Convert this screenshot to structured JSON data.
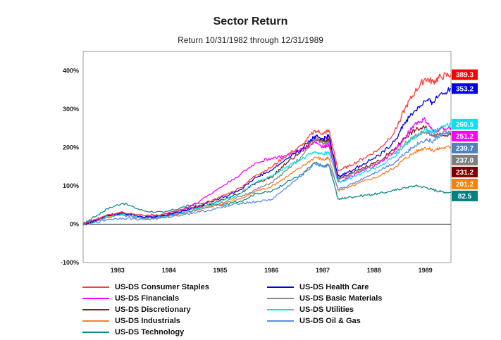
{
  "chart_data": {
    "type": "line",
    "title": "Sector Return",
    "subtitle": "Return 10/31/1982 through 12/31/1989",
    "xlabel": "",
    "ylabel": "",
    "x_range": [
      1982.83,
      1990.0
    ],
    "x_ticks": [
      "1983",
      "1984",
      "1985",
      "1986",
      "1987",
      "1988",
      "1989"
    ],
    "ylim": [
      -100,
      450
    ],
    "y_ticks": [
      -100,
      0,
      100,
      200,
      300,
      400
    ],
    "y_tick_labels": [
      "-100%",
      "0%",
      "100%",
      "200%",
      "300%",
      "400%"
    ],
    "grid": true,
    "legend_position": "bottom",
    "series": [
      {
        "name": "US-DS Consumer Staples",
        "color": "#ff3b3b",
        "end_label": "389.3",
        "label_bg": "#ff0000",
        "label_fg": "#ffffff",
        "points": [
          [
            1982.83,
            0
          ],
          [
            1983.0,
            8
          ],
          [
            1983.3,
            25
          ],
          [
            1983.6,
            32
          ],
          [
            1984.0,
            22
          ],
          [
            1984.4,
            26
          ],
          [
            1984.8,
            38
          ],
          [
            1985.1,
            50
          ],
          [
            1985.5,
            70
          ],
          [
            1985.9,
            95
          ],
          [
            1986.2,
            128
          ],
          [
            1986.5,
            148
          ],
          [
            1986.8,
            180
          ],
          [
            1987.1,
            205
          ],
          [
            1987.35,
            244
          ],
          [
            1987.52,
            235
          ],
          [
            1987.62,
            245
          ],
          [
            1987.8,
            140
          ],
          [
            1988.0,
            150
          ],
          [
            1988.3,
            172
          ],
          [
            1988.6,
            195
          ],
          [
            1988.9,
            240
          ],
          [
            1989.1,
            300
          ],
          [
            1989.3,
            345
          ],
          [
            1989.5,
            380
          ],
          [
            1989.65,
            370
          ],
          [
            1989.8,
            384
          ],
          [
            1990.0,
            389.3
          ]
        ]
      },
      {
        "name": "US-DS Health Care",
        "color": "#0000ee",
        "end_label": "353.2",
        "label_bg": "#0000ee",
        "label_fg": "#ffffff",
        "points": [
          [
            1982.83,
            0
          ],
          [
            1983.0,
            6
          ],
          [
            1983.3,
            24
          ],
          [
            1983.6,
            30
          ],
          [
            1984.0,
            18
          ],
          [
            1984.4,
            22
          ],
          [
            1984.8,
            36
          ],
          [
            1985.1,
            48
          ],
          [
            1985.5,
            68
          ],
          [
            1985.9,
            90
          ],
          [
            1986.2,
            122
          ],
          [
            1986.5,
            140
          ],
          [
            1986.8,
            170
          ],
          [
            1987.1,
            198
          ],
          [
            1987.35,
            230
          ],
          [
            1987.52,
            222
          ],
          [
            1987.62,
            230
          ],
          [
            1987.8,
            125
          ],
          [
            1988.0,
            135
          ],
          [
            1988.3,
            158
          ],
          [
            1988.6,
            178
          ],
          [
            1988.9,
            215
          ],
          [
            1989.1,
            265
          ],
          [
            1989.3,
            295
          ],
          [
            1989.5,
            320
          ],
          [
            1989.65,
            318
          ],
          [
            1989.8,
            340
          ],
          [
            1990.0,
            353.2
          ]
        ]
      },
      {
        "name": "US-DS Utilities",
        "color": "#00e5ee",
        "end_label": "260.5",
        "label_bg": "#00e5ee",
        "label_fg": "#ffffff",
        "points": [
          [
            1982.83,
            0
          ],
          [
            1983.0,
            5
          ],
          [
            1983.3,
            20
          ],
          [
            1983.6,
            26
          ],
          [
            1984.0,
            16
          ],
          [
            1984.4,
            20
          ],
          [
            1984.8,
            32
          ],
          [
            1985.1,
            42
          ],
          [
            1985.5,
            60
          ],
          [
            1985.9,
            80
          ],
          [
            1986.2,
            110
          ],
          [
            1986.5,
            125
          ],
          [
            1986.8,
            150
          ],
          [
            1987.1,
            170
          ],
          [
            1987.35,
            190
          ],
          [
            1987.52,
            182
          ],
          [
            1987.62,
            188
          ],
          [
            1987.8,
            110
          ],
          [
            1988.0,
            118
          ],
          [
            1988.3,
            135
          ],
          [
            1988.6,
            150
          ],
          [
            1988.9,
            175
          ],
          [
            1989.1,
            205
          ],
          [
            1989.3,
            228
          ],
          [
            1989.5,
            245
          ],
          [
            1989.65,
            238
          ],
          [
            1989.8,
            252
          ],
          [
            1990.0,
            260.5
          ]
        ]
      },
      {
        "name": "US-DS Financials",
        "color": "#ff00ff",
        "end_label": "251.2",
        "label_bg": "#ff00ff",
        "label_fg": "#ffffff",
        "points": [
          [
            1982.83,
            0
          ],
          [
            1983.0,
            6
          ],
          [
            1983.3,
            22
          ],
          [
            1983.6,
            28
          ],
          [
            1984.0,
            18
          ],
          [
            1984.4,
            24
          ],
          [
            1984.8,
            40
          ],
          [
            1985.1,
            60
          ],
          [
            1985.5,
            95
          ],
          [
            1985.9,
            130
          ],
          [
            1986.2,
            160
          ],
          [
            1986.5,
            172
          ],
          [
            1986.8,
            178
          ],
          [
            1987.1,
            195
          ],
          [
            1987.35,
            215
          ],
          [
            1987.52,
            200
          ],
          [
            1987.62,
            208
          ],
          [
            1987.8,
            110
          ],
          [
            1988.0,
            120
          ],
          [
            1988.3,
            140
          ],
          [
            1988.6,
            158
          ],
          [
            1988.9,
            190
          ],
          [
            1989.1,
            225
          ],
          [
            1989.3,
            262
          ],
          [
            1989.5,
            272
          ],
          [
            1989.65,
            240
          ],
          [
            1989.8,
            248
          ],
          [
            1990.0,
            251.2
          ]
        ]
      },
      {
        "name": "US-DS Oil & Gas",
        "color": "#5a8dee",
        "end_label": "239.7",
        "label_bg": "#4f81bd",
        "label_fg": "#ffffff",
        "points": [
          [
            1982.83,
            0
          ],
          [
            1983.0,
            2
          ],
          [
            1983.3,
            12
          ],
          [
            1983.6,
            16
          ],
          [
            1984.0,
            12
          ],
          [
            1984.4,
            16
          ],
          [
            1984.8,
            26
          ],
          [
            1985.1,
            32
          ],
          [
            1985.5,
            42
          ],
          [
            1985.9,
            55
          ],
          [
            1986.2,
            58
          ],
          [
            1986.5,
            64
          ],
          [
            1986.8,
            96
          ],
          [
            1987.1,
            128
          ],
          [
            1987.35,
            158
          ],
          [
            1987.52,
            150
          ],
          [
            1987.62,
            155
          ],
          [
            1987.8,
            90
          ],
          [
            1988.0,
            100
          ],
          [
            1988.3,
            120
          ],
          [
            1988.6,
            140
          ],
          [
            1988.9,
            160
          ],
          [
            1989.1,
            185
          ],
          [
            1989.3,
            205
          ],
          [
            1989.5,
            220
          ],
          [
            1989.65,
            215
          ],
          [
            1989.8,
            232
          ],
          [
            1990.0,
            239.7
          ]
        ]
      },
      {
        "name": "US-DS Basic Materials",
        "color": "#888888",
        "end_label": "237.0",
        "label_bg": "#7f7f7f",
        "label_fg": "#ffffff",
        "points": [
          [
            1982.83,
            0
          ],
          [
            1983.0,
            4
          ],
          [
            1983.3,
            18
          ],
          [
            1983.6,
            24
          ],
          [
            1984.0,
            15
          ],
          [
            1984.4,
            20
          ],
          [
            1984.8,
            30
          ],
          [
            1985.1,
            40
          ],
          [
            1985.5,
            55
          ],
          [
            1985.9,
            72
          ],
          [
            1986.2,
            90
          ],
          [
            1986.5,
            108
          ],
          [
            1986.8,
            140
          ],
          [
            1987.1,
            178
          ],
          [
            1987.35,
            220
          ],
          [
            1987.52,
            210
          ],
          [
            1987.62,
            215
          ],
          [
            1987.8,
            115
          ],
          [
            1988.0,
            125
          ],
          [
            1988.3,
            145
          ],
          [
            1988.6,
            162
          ],
          [
            1988.9,
            185
          ],
          [
            1989.1,
            210
          ],
          [
            1989.3,
            230
          ],
          [
            1989.5,
            240
          ],
          [
            1989.65,
            228
          ],
          [
            1989.8,
            236
          ],
          [
            1990.0,
            237.0
          ]
        ]
      },
      {
        "name": "US-DS Discretionary",
        "color": "#8b1a1a",
        "end_label": "231.2",
        "label_bg": "#800000",
        "label_fg": "#ffffff",
        "points": [
          [
            1982.83,
            0
          ],
          [
            1983.0,
            5
          ],
          [
            1983.3,
            22
          ],
          [
            1983.6,
            30
          ],
          [
            1984.0,
            18
          ],
          [
            1984.4,
            22
          ],
          [
            1984.8,
            34
          ],
          [
            1985.1,
            45
          ],
          [
            1985.5,
            62
          ],
          [
            1985.9,
            80
          ],
          [
            1986.2,
            108
          ],
          [
            1986.5,
            122
          ],
          [
            1986.8,
            160
          ],
          [
            1987.1,
            190
          ],
          [
            1987.35,
            225
          ],
          [
            1987.52,
            215
          ],
          [
            1987.62,
            220
          ],
          [
            1987.8,
            120
          ],
          [
            1988.0,
            128
          ],
          [
            1988.3,
            148
          ],
          [
            1988.6,
            165
          ],
          [
            1988.9,
            195
          ],
          [
            1989.1,
            225
          ],
          [
            1989.3,
            245
          ],
          [
            1989.5,
            252
          ],
          [
            1989.65,
            232
          ],
          [
            1989.8,
            236
          ],
          [
            1990.0,
            231.2
          ]
        ]
      },
      {
        "name": "US-DS Industrials",
        "color": "#ff7f27",
        "end_label": "201.2",
        "label_bg": "#ff7f00",
        "label_fg": "#ffffff",
        "points": [
          [
            1982.83,
            0
          ],
          [
            1983.0,
            4
          ],
          [
            1983.3,
            20
          ],
          [
            1983.6,
            26
          ],
          [
            1984.0,
            15
          ],
          [
            1984.4,
            18
          ],
          [
            1984.8,
            28
          ],
          [
            1985.1,
            38
          ],
          [
            1985.5,
            52
          ],
          [
            1985.9,
            66
          ],
          [
            1986.2,
            86
          ],
          [
            1986.5,
            98
          ],
          [
            1986.8,
            124
          ],
          [
            1987.1,
            150
          ],
          [
            1987.35,
            175
          ],
          [
            1987.52,
            168
          ],
          [
            1987.62,
            172
          ],
          [
            1987.8,
            88
          ],
          [
            1988.0,
            95
          ],
          [
            1988.3,
            112
          ],
          [
            1988.6,
            125
          ],
          [
            1988.9,
            148
          ],
          [
            1989.1,
            170
          ],
          [
            1989.3,
            188
          ],
          [
            1989.5,
            200
          ],
          [
            1989.65,
            192
          ],
          [
            1989.8,
            198
          ],
          [
            1990.0,
            201.2
          ]
        ]
      },
      {
        "name": "US-DS Technology",
        "color": "#148a8a",
        "end_label": "82.5",
        "label_bg": "#008080",
        "label_fg": "#ffffff",
        "points": [
          [
            1982.83,
            0
          ],
          [
            1983.0,
            15
          ],
          [
            1983.3,
            40
          ],
          [
            1983.6,
            55
          ],
          [
            1984.0,
            35
          ],
          [
            1984.4,
            30
          ],
          [
            1984.8,
            45
          ],
          [
            1985.1,
            55
          ],
          [
            1985.5,
            48
          ],
          [
            1985.9,
            60
          ],
          [
            1986.2,
            80
          ],
          [
            1986.5,
            85
          ],
          [
            1986.8,
            110
          ],
          [
            1987.1,
            130
          ],
          [
            1987.35,
            160
          ],
          [
            1987.52,
            150
          ],
          [
            1987.62,
            155
          ],
          [
            1987.8,
            65
          ],
          [
            1988.0,
            70
          ],
          [
            1988.3,
            75
          ],
          [
            1988.6,
            80
          ],
          [
            1988.9,
            88
          ],
          [
            1989.1,
            95
          ],
          [
            1989.3,
            100
          ],
          [
            1989.5,
            96
          ],
          [
            1989.65,
            90
          ],
          [
            1989.8,
            85
          ],
          [
            1990.0,
            82.5
          ]
        ]
      }
    ],
    "legend_order": [
      "US-DS Consumer Staples",
      "US-DS Health Care",
      "US-DS Financials",
      "US-DS Basic Materials",
      "US-DS Discretionary",
      "US-DS Utilities",
      "US-DS Industrials",
      "US-DS Oil & Gas",
      "US-DS Technology"
    ],
    "end_label_order": [
      "US-DS Consumer Staples",
      "US-DS Health Care",
      "US-DS Utilities",
      "US-DS Financials",
      "US-DS Oil & Gas",
      "US-DS Basic Materials",
      "US-DS Discretionary",
      "US-DS Industrials",
      "US-DS Technology"
    ]
  }
}
